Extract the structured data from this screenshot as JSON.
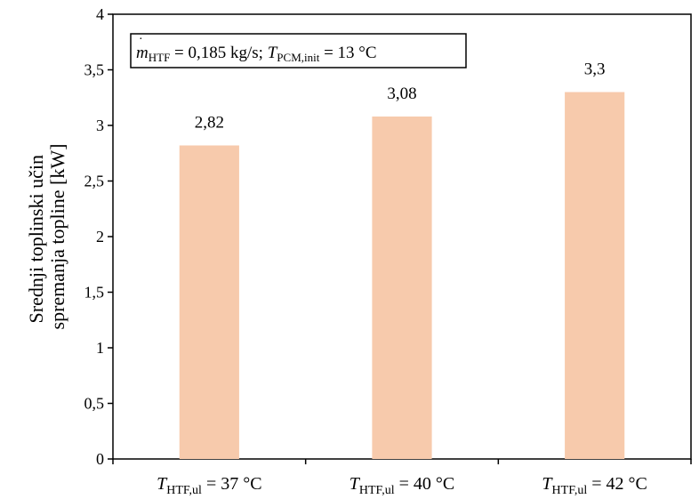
{
  "chart_data": {
    "type": "bar",
    "categories": [
      {
        "main": "T",
        "sub": "HTF,ul",
        "rest": " = 37 °C"
      },
      {
        "main": "T",
        "sub": "HTF,ul",
        "rest": " = 40 °C"
      },
      {
        "main": "T",
        "sub": "HTF,ul",
        "rest": " = 42 °C"
      }
    ],
    "values": [
      2.82,
      3.08,
      3.3
    ],
    "data_labels": [
      "2,82",
      "3,08",
      "3,3"
    ],
    "ylim": [
      0,
      4
    ],
    "yticks": [
      0,
      0.5,
      1,
      1.5,
      2,
      2.5,
      3,
      3.5,
      4
    ],
    "ytick_labels": [
      "0",
      "0,5",
      "1",
      "1,5",
      "2",
      "2,5",
      "3",
      "3,5",
      "4"
    ],
    "ylabel_lines": [
      "Srednji toplinski učin",
      "spremanja topline [kW]"
    ],
    "xlabel": "",
    "title": "",
    "grid": false,
    "bar_color": "#f7caac",
    "annotation": {
      "m": "m",
      "m_sub": "HTF",
      "part1": " = 0,185 kg/s; ",
      "t": "T",
      "t_sub": "PCM,init",
      "part2": " = 13 °C"
    }
  }
}
